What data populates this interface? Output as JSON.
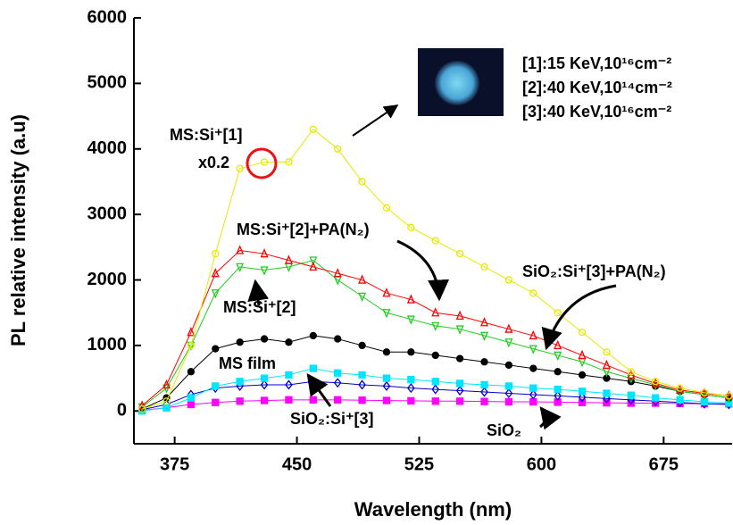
{
  "chart_data": {
    "type": "scatter",
    "x_label": "Wavelength (nm)",
    "y_label": "PL relative intensity (a.u)",
    "xlim": [
      350,
      717
    ],
    "ylim": [
      -500,
      6000
    ],
    "xticks": [
      375,
      450,
      525,
      600,
      675
    ],
    "yticks": [
      0,
      1000,
      2000,
      3000,
      4000,
      5000,
      6000
    ],
    "x": [
      355,
      370,
      385,
      400,
      415,
      430,
      445,
      460,
      475,
      490,
      505,
      520,
      535,
      550,
      565,
      580,
      595,
      610,
      625,
      640,
      655,
      670,
      685,
      700,
      715
    ],
    "series": [
      {
        "name": "SiO₂",
        "color": "#ff00ff",
        "marker": "square",
        "values": [
          10,
          50,
          100,
          130,
          150,
          160,
          170,
          170,
          170,
          165,
          160,
          155,
          150,
          150,
          145,
          140,
          140,
          135,
          130,
          125,
          120,
          120,
          115,
          110,
          110
        ]
      },
      {
        "name": "SiO₂:Si⁺[3]",
        "color": "#0000cc",
        "marker": "diamond-open",
        "values": [
          20,
          100,
          250,
          350,
          380,
          400,
          400,
          450,
          430,
          400,
          380,
          350,
          330,
          310,
          290,
          270,
          250,
          230,
          210,
          190,
          170,
          150,
          130,
          110,
          100
        ]
      },
      {
        "name": "SiO₂:Si⁺[3]+PA(N₂)",
        "color": "#00e5ff",
        "marker": "square",
        "values": [
          0,
          50,
          200,
          380,
          450,
          500,
          550,
          650,
          580,
          550,
          500,
          480,
          450,
          420,
          400,
          380,
          350,
          330,
          300,
          270,
          240,
          200,
          170,
          140,
          120
        ]
      },
      {
        "name": "MS film",
        "color": "#000000",
        "marker": "circle",
        "values": [
          30,
          200,
          600,
          950,
          1050,
          1100,
          1050,
          1150,
          1100,
          1000,
          900,
          900,
          850,
          800,
          750,
          700,
          650,
          600,
          550,
          500,
          450,
          380,
          300,
          250,
          200
        ]
      },
      {
        "name": "MS:Si⁺[2]",
        "color": "#22cc22",
        "marker": "triangle-down-open",
        "values": [
          60,
          350,
          1000,
          1800,
          2200,
          2150,
          2200,
          2300,
          2000,
          1750,
          1500,
          1400,
          1300,
          1250,
          1150,
          1050,
          950,
          850,
          750,
          600,
          500,
          400,
          300,
          250,
          200
        ]
      },
      {
        "name": "MS:Si⁺[2]+PA(N₂)",
        "color": "#ff0000",
        "marker": "triangle-open",
        "values": [
          80,
          400,
          1200,
          2100,
          2450,
          2400,
          2300,
          2200,
          2100,
          2000,
          1800,
          1700,
          1500,
          1450,
          1350,
          1250,
          1150,
          1000,
          850,
          700,
          550,
          420,
          320,
          270,
          230
        ]
      },
      {
        "name": "MS:Si⁺[1]",
        "color": "#e8e800",
        "marker": "circle-open",
        "values": [
          30,
          150,
          1000,
          2400,
          3700,
          3800,
          3800,
          4300,
          4000,
          3500,
          3100,
          2800,
          2600,
          2400,
          2200,
          2000,
          1800,
          1500,
          1200,
          900,
          600,
          450,
          350,
          280,
          230
        ]
      }
    ],
    "annotations": [
      "x0.2",
      "[1]:15 KeV,10¹⁶cm⁻²",
      "[2]:40 KeV,10¹⁴cm⁻²",
      "[3]:40 KeV,10¹⁶cm⁻²"
    ]
  }
}
